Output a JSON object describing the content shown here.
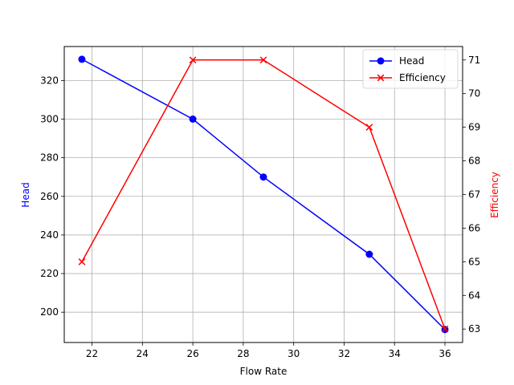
{
  "chart_data": {
    "type": "line",
    "title": "",
    "xlabel": "Flow Rate",
    "x": [
      21.6,
      26.0,
      28.8,
      33.0,
      36.0
    ],
    "xlim": [
      20.9,
      36.7
    ],
    "xticks": [
      22,
      24,
      26,
      28,
      30,
      32,
      34,
      36
    ],
    "grid": true,
    "legend_position": "upper right",
    "axes": [
      {
        "side": "left",
        "ylabel": "Head",
        "ylabel_color": "#0000ff",
        "ylim": [
          184.3,
          337.6
        ],
        "yticks": [
          200,
          220,
          240,
          260,
          280,
          300,
          320
        ]
      },
      {
        "side": "right",
        "ylabel": "Efficiency",
        "ylabel_color": "#ff0000",
        "ylim": [
          62.6,
          71.4
        ],
        "yticks": [
          63,
          64,
          65,
          66,
          67,
          68,
          69,
          70,
          71
        ]
      }
    ],
    "series": [
      {
        "name": "Head",
        "axis": "left",
        "color": "#0000ff",
        "marker": "o",
        "values": [
          331,
          300,
          270,
          230,
          191
        ]
      },
      {
        "name": "Efficiency",
        "axis": "right",
        "color": "#ff0000",
        "marker": "x",
        "values": [
          65,
          71,
          71,
          69,
          63
        ]
      }
    ]
  }
}
